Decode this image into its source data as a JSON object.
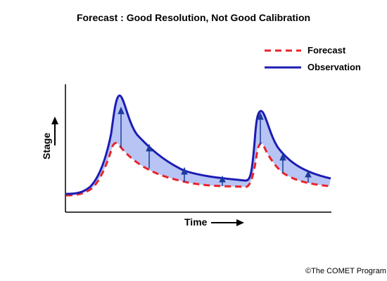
{
  "title": "Forecast : Good Resolution, Not Good Calibration",
  "legend": {
    "forecast_label": "Forecast",
    "observation_label": "Observation"
  },
  "axes": {
    "x_label": "Time",
    "y_label": "Stage"
  },
  "credit": "©The COMET Program",
  "colors": {
    "forecast": "#e8242a",
    "observation": "#1c1cb4",
    "shading": "#b8c4f4",
    "arrow": "#1c3c9c",
    "axis": "#000000"
  }
}
